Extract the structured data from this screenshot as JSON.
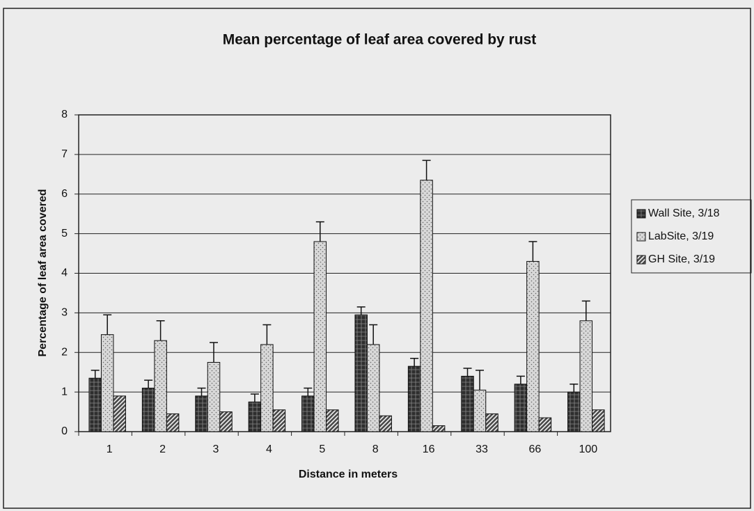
{
  "chart_data": {
    "type": "bar",
    "title": "Mean percentage of leaf area covered by rust",
    "x_label": "Distance in meters",
    "y_label": "Percentage of leaf area covered",
    "categories": [
      "1",
      "2",
      "3",
      "4",
      "5",
      "8",
      "16",
      "33",
      "66",
      "100"
    ],
    "series": [
      {
        "name": "Wall Site, 3/18",
        "color": "#2e2e2e",
        "pattern": "crosshatch",
        "values": [
          1.35,
          1.1,
          0.9,
          0.75,
          0.9,
          2.95,
          1.65,
          1.4,
          1.2,
          1.0
        ],
        "errors": [
          0.2,
          0.2,
          0.2,
          0.2,
          0.2,
          0.2,
          0.2,
          0.2,
          0.2,
          0.2
        ]
      },
      {
        "name": "LabSite, 3/19",
        "color": "#d8d8d8",
        "pattern": "dots",
        "values": [
          2.45,
          2.3,
          1.75,
          2.2,
          4.8,
          2.2,
          6.35,
          1.05,
          4.3,
          2.8
        ],
        "errors": [
          0.5,
          0.5,
          0.5,
          0.5,
          0.5,
          0.5,
          0.5,
          0.5,
          0.5,
          0.5
        ]
      },
      {
        "name": "GH Site, 3/19",
        "color": "#4a4a4a",
        "pattern": "diagonal",
        "values": [
          0.9,
          0.45,
          0.5,
          0.55,
          0.55,
          0.4,
          0.15,
          0.45,
          0.35,
          0.55
        ]
      }
    ],
    "ylim": [
      0,
      8
    ],
    "yticks": [
      0,
      1,
      2,
      3,
      4,
      5,
      6,
      7,
      8
    ],
    "grid": true,
    "legend": "right"
  }
}
